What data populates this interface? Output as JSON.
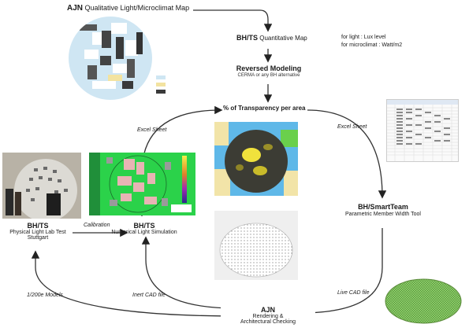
{
  "top": {
    "ajn_prefix": "AJN",
    "ajn_title": "Qualitative Light/Microclimat Map"
  },
  "map_legend": [
    "",
    "",
    ""
  ],
  "quantitative": {
    "prefix": "BH/TS",
    "title": "Quantitative Map",
    "note_light": "for light : Lux level",
    "note_micro": "for microclimat : Watt/m2"
  },
  "reversed": {
    "title": "Reversed Modeling",
    "subtitle": "CERMA or any BH alternative"
  },
  "transparency": {
    "label": "% of Transparency per area"
  },
  "excel_left": "Excel Sheet",
  "excel_right": "Excel Sheet",
  "smartteam": {
    "prefix": "BH/SmartTeam",
    "subtitle": "Parametric Member Width Tool"
  },
  "lab": {
    "prefix": "BH/TS",
    "line1": "Physical Light Lab Test",
    "line2": "Stuttgart"
  },
  "calibration": "Calibration",
  "numerical": {
    "prefix": "BH/TS",
    "line1": "Numerical Light Simulation"
  },
  "models": "1/200e Models",
  "inert_cad": "Inert CAD file",
  "live_cad": "Live CAD file",
  "ajn_bottom": {
    "prefix": "AJN",
    "line1": "Rendering &",
    "line2": "Architectural Checking"
  },
  "colors": {
    "sky_blue": "#5fb8e8",
    "sim_green": "#2bd24a",
    "dome_dark": "#3c3c34",
    "dome_yellow": "#f0e23c",
    "mesh_green": "#6fae4a"
  }
}
